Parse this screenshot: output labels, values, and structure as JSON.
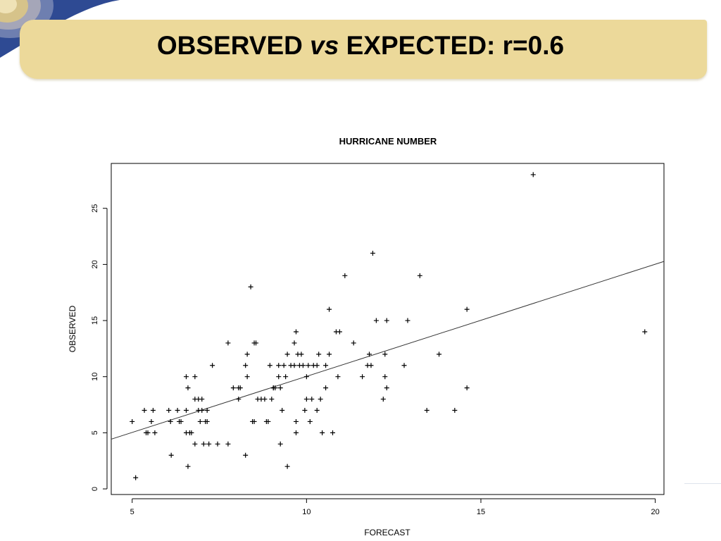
{
  "slide": {
    "title_part1": "OBSERVED",
    "title_part2": "vs",
    "title_part3": "EXPECTED: r=0.6"
  },
  "colors": {
    "title_bar": "#ecd99a",
    "corner_dark": "#2e4a93",
    "corner_light": "#d6c38a",
    "ink": "#000000"
  },
  "chart_data": {
    "type": "scatter",
    "title": "HURRICANE NUMBER",
    "xlabel": "FORECAST",
    "ylabel": "OBSERVED",
    "xlim": [
      4.4,
      20.25
    ],
    "ylim": [
      -0.5,
      29
    ],
    "xticks": [
      5,
      10,
      15,
      20
    ],
    "yticks": [
      0,
      5,
      10,
      15,
      20,
      25
    ],
    "marker": "plus",
    "grid": false,
    "points": [
      [
        5.0,
        6
      ],
      [
        5.1,
        1
      ],
      [
        5.35,
        7
      ],
      [
        5.4,
        5
      ],
      [
        5.45,
        5
      ],
      [
        5.55,
        6
      ],
      [
        5.6,
        7
      ],
      [
        5.65,
        5
      ],
      [
        6.05,
        7
      ],
      [
        6.1,
        6
      ],
      [
        6.12,
        3
      ],
      [
        6.3,
        7
      ],
      [
        6.35,
        6
      ],
      [
        6.4,
        6
      ],
      [
        6.55,
        10
      ],
      [
        6.55,
        7
      ],
      [
        6.55,
        5
      ],
      [
        6.6,
        9
      ],
      [
        6.6,
        2
      ],
      [
        6.65,
        5
      ],
      [
        6.7,
        5
      ],
      [
        6.8,
        10
      ],
      [
        6.8,
        8
      ],
      [
        6.8,
        4
      ],
      [
        6.9,
        8
      ],
      [
        6.9,
        7
      ],
      [
        6.95,
        6
      ],
      [
        7.0,
        8
      ],
      [
        7.0,
        7
      ],
      [
        7.05,
        4
      ],
      [
        7.1,
        6
      ],
      [
        7.15,
        7
      ],
      [
        7.15,
        6
      ],
      [
        7.2,
        4
      ],
      [
        7.3,
        11
      ],
      [
        7.45,
        4
      ],
      [
        7.75,
        13
      ],
      [
        7.75,
        4
      ],
      [
        7.9,
        9
      ],
      [
        8.05,
        8
      ],
      [
        8.05,
        9
      ],
      [
        8.1,
        9
      ],
      [
        8.25,
        11
      ],
      [
        8.25,
        3
      ],
      [
        8.3,
        12
      ],
      [
        8.3,
        10
      ],
      [
        8.4,
        18
      ],
      [
        8.45,
        6
      ],
      [
        8.5,
        6
      ],
      [
        8.5,
        13
      ],
      [
        8.55,
        13
      ],
      [
        8.6,
        8
      ],
      [
        8.7,
        8
      ],
      [
        8.8,
        8
      ],
      [
        8.85,
        6
      ],
      [
        8.9,
        6
      ],
      [
        8.95,
        11
      ],
      [
        9.0,
        8
      ],
      [
        9.05,
        9
      ],
      [
        9.05,
        9
      ],
      [
        9.1,
        9
      ],
      [
        9.2,
        11
      ],
      [
        9.2,
        10
      ],
      [
        9.25,
        4
      ],
      [
        9.25,
        9
      ],
      [
        9.3,
        7
      ],
      [
        9.35,
        11
      ],
      [
        9.4,
        10
      ],
      [
        9.45,
        12
      ],
      [
        9.45,
        2
      ],
      [
        9.55,
        11
      ],
      [
        9.65,
        13
      ],
      [
        9.65,
        11
      ],
      [
        9.7,
        14
      ],
      [
        9.7,
        6
      ],
      [
        9.7,
        5
      ],
      [
        9.75,
        12
      ],
      [
        9.8,
        11
      ],
      [
        9.85,
        12
      ],
      [
        9.9,
        11
      ],
      [
        9.95,
        7
      ],
      [
        10.0,
        8
      ],
      [
        10.0,
        10
      ],
      [
        10.05,
        11
      ],
      [
        10.1,
        6
      ],
      [
        10.15,
        8
      ],
      [
        10.2,
        11
      ],
      [
        10.3,
        11
      ],
      [
        10.3,
        7
      ],
      [
        10.35,
        12
      ],
      [
        10.4,
        8
      ],
      [
        10.45,
        5
      ],
      [
        10.55,
        11
      ],
      [
        10.55,
        9
      ],
      [
        10.65,
        16
      ],
      [
        10.65,
        12
      ],
      [
        10.75,
        5
      ],
      [
        10.85,
        14
      ],
      [
        10.9,
        10
      ],
      [
        10.95,
        14
      ],
      [
        11.1,
        19
      ],
      [
        11.35,
        13
      ],
      [
        11.6,
        10
      ],
      [
        11.75,
        11
      ],
      [
        11.8,
        12
      ],
      [
        11.85,
        11
      ],
      [
        11.9,
        21
      ],
      [
        12.0,
        15
      ],
      [
        12.2,
        8
      ],
      [
        12.25,
        12
      ],
      [
        12.25,
        10
      ],
      [
        12.3,
        15
      ],
      [
        12.3,
        9
      ],
      [
        12.8,
        11
      ],
      [
        12.9,
        15
      ],
      [
        13.25,
        19
      ],
      [
        13.45,
        7
      ],
      [
        13.8,
        12
      ],
      [
        14.25,
        7
      ],
      [
        14.6,
        16
      ],
      [
        14.6,
        9
      ],
      [
        16.5,
        28
      ],
      [
        19.7,
        14
      ]
    ],
    "regression_line": {
      "x": [
        4.4,
        20.25
      ],
      "y": [
        4.43,
        20.27
      ]
    }
  }
}
